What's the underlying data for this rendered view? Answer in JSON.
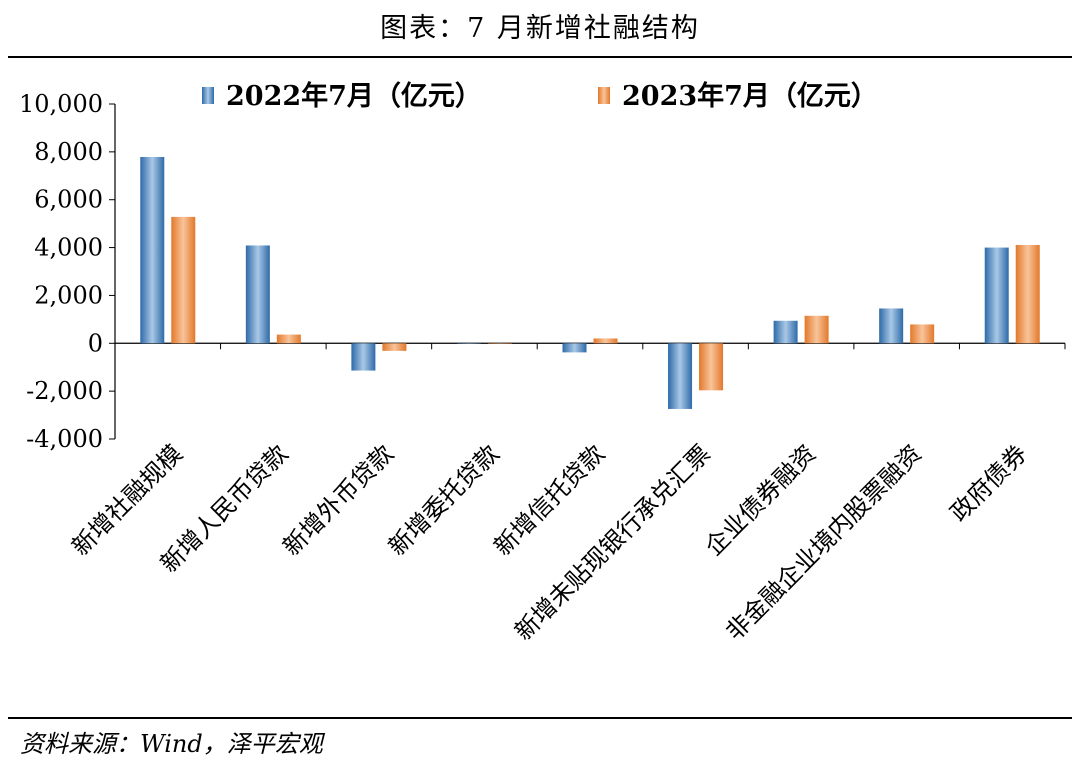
{
  "title": "图表：7 月新增社融结构",
  "source": "资料来源：Wind，泽平宏观",
  "chart_data": {
    "type": "bar",
    "categories": [
      "新增社融规模",
      "新增人民币贷款",
      "新增外币贷款",
      "新增委托贷款",
      "新增信托贷款",
      "新增未贴现银行承兑汇票",
      "企业债券融资",
      "非金融企业境内股票融资",
      "政府债券"
    ],
    "series": [
      {
        "name": "2022年7月（亿元）",
        "values": [
          7785,
          4088,
          -1140,
          -20,
          -380,
          -2744,
          941,
          1455,
          4000
        ],
        "color": "#5b8fc6"
      },
      {
        "name": "2023年7月（亿元）",
        "values": [
          5282,
          364,
          -317,
          -10,
          202,
          -1966,
          1150,
          788,
          4109
        ],
        "color": "#f0924a"
      }
    ],
    "ylim": [
      -4000,
      10000
    ],
    "yticks": [
      -4000,
      -2000,
      0,
      2000,
      4000,
      6000,
      8000,
      10000
    ],
    "ytick_labels": [
      "-4,000",
      "-2,000",
      "0",
      "2,000",
      "4,000",
      "6,000",
      "8,000",
      "10,000"
    ],
    "legend_position": "top",
    "grid": false
  }
}
